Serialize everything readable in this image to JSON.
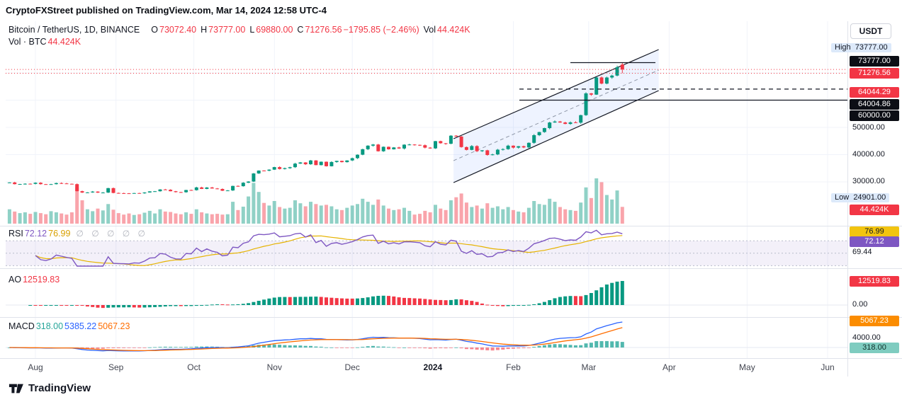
{
  "attribution": "CryptoFXStreet published on TradingView.com, Mar 14, 2024 12:58 UTC-4",
  "currency_button": "USDT",
  "symbol": {
    "title": "Bitcoin / TetherUS, 1D, BINANCE",
    "ohlc": {
      "o_label": "O",
      "o": "73072.40",
      "h_label": "H",
      "h": "73777.00",
      "l_label": "L",
      "l": "69880.00",
      "c_label": "C",
      "c": "71276.56",
      "change": "−1795.85 (−2.46%)",
      "vol_label": "Vol",
      "vol": "44.424K"
    },
    "volume_row": {
      "label": "Vol · BTC",
      "value": "44.424K"
    }
  },
  "price_axis": {
    "high_label": "High",
    "high_value": "73777.00",
    "ath_badge": "73777.00",
    "last_badge": "71276.56",
    "dashed_line_badge": "64044.29",
    "level_badge": "64004.86",
    "support_badge": "60000.00",
    "grid_50000": "50000.00",
    "grid_40000": "40000.00",
    "grid_30000": "30000.00",
    "low_label": "Low",
    "low_value": "24901.00",
    "volume_badge": "44.424K"
  },
  "rsi": {
    "label": "RSI",
    "value": "72.12",
    "ma_value": "76.99",
    "hidden": "∅ ∅ ∅ ∅ ∅",
    "badge_ma": "76.99",
    "badge_rsi": "72.12",
    "scale_label": "69.44"
  },
  "ao": {
    "label": "AO",
    "value": "12519.83",
    "badge": "12519.83",
    "zero_label": "0.00"
  },
  "macd": {
    "label": "MACD",
    "hist_value": "318.00",
    "macd_value": "5385.22",
    "signal_value": "5067.23",
    "badge_signal": "5067.23",
    "scale_label": "4000.00",
    "badge_hist": "318.00"
  },
  "time_axis": [
    "Aug",
    "Sep",
    "Oct",
    "Nov",
    "Dec",
    "2024",
    "Feb",
    "Mar",
    "Apr",
    "May",
    "Jun"
  ],
  "footer": {
    "brand": "TradingView"
  },
  "chart_data": {
    "type": "candlestick",
    "title": "Bitcoin / TetherUS, 1D, BINANCE",
    "interval": "1D",
    "x_start": "2023-07-22",
    "x_step_days": 2,
    "x_axis_months": [
      "Aug",
      "Sep",
      "Oct",
      "Nov",
      "Dec",
      "2024",
      "Feb",
      "Mar",
      "Apr",
      "May",
      "Jun"
    ],
    "y_gridlines": [
      30000,
      40000,
      50000,
      60000,
      70000
    ],
    "ylim": [
      24000,
      79000
    ],
    "close": [
      29790,
      29180,
      29230,
      29320,
      29280,
      29700,
      29170,
      29040,
      29180,
      29560,
      29430,
      29290,
      29170,
      26600,
      26090,
      26120,
      26430,
      26050,
      26090,
      27720,
      25940,
      25870,
      25820,
      25750,
      25900,
      25830,
      26100,
      26530,
      26570,
      27210,
      27120,
      26580,
      26250,
      26220,
      27020,
      26970,
      27980,
      27430,
      27960,
      27590,
      27390,
      26750,
      26860,
      28520,
      28420,
      29680,
      30140,
      33090,
      34160,
      34100,
      34500,
      35440,
      34730,
      35050,
      35400,
      36700,
      37130,
      36460,
      37880,
      36160,
      37390,
      35750,
      37290,
      37710,
      37250,
      37860,
      38690,
      39970,
      41990,
      43290,
      43720,
      41240,
      42890,
      41940,
      42660,
      42260,
      43670,
      43710,
      43580,
      43450,
      42580,
      42280,
      44950,
      44180,
      43990,
      46950,
      46650,
      42780,
      41730,
      43150,
      41280,
      41580,
      39880,
      40080,
      41820,
      42030,
      43300,
      42580,
      43080,
      42660,
      44350,
      47150,
      48290,
      49740,
      51800,
      52160,
      51780,
      51280,
      51840,
      51730,
      54500,
      62500,
      62030,
      68330,
      66090,
      68300,
      69020,
      72080,
      71276.56
    ],
    "volume_k": [
      38,
      32,
      28,
      30,
      26,
      31,
      28,
      25,
      33,
      30,
      27,
      24,
      30,
      96,
      62,
      38,
      33,
      40,
      35,
      52,
      37,
      28,
      24,
      27,
      23,
      25,
      29,
      34,
      27,
      38,
      32,
      31,
      27,
      25,
      30,
      26,
      38,
      30,
      27,
      25,
      26,
      24,
      25,
      58,
      36,
      45,
      72,
      108,
      84,
      55,
      48,
      60,
      44,
      40,
      42,
      62,
      54,
      46,
      58,
      52,
      48,
      50,
      46,
      38,
      36,
      42,
      48,
      52,
      66,
      58,
      50,
      64,
      48,
      40,
      36,
      38,
      42,
      34,
      24,
      26,
      34,
      30,
      50,
      40,
      36,
      62,
      70,
      80,
      56,
      44,
      48,
      40,
      54,
      42,
      46,
      38,
      44,
      36,
      32,
      30,
      42,
      60,
      52,
      50,
      66,
      58,
      44,
      38,
      36,
      34,
      56,
      96,
      68,
      120,
      110,
      76,
      64,
      88,
      44.424
    ],
    "ohlc_last": {
      "open": 73072.4,
      "high": 73777.0,
      "low": 69880.0,
      "close": 71276.56,
      "change": -1795.85,
      "change_pct": -2.46
    },
    "shown_high": 73777.0,
    "shown_low": 24901.0,
    "levels": {
      "ath_resistance": 73777.0,
      "last_price": 71276.56,
      "day_low_line": 69880.0,
      "dashed_level": 64044.29,
      "level2": 64004.86,
      "support": 60000.0
    },
    "channel": {
      "i0": 85.5,
      "i1": 125,
      "upper0": 45844,
      "upper1": 78571,
      "lower0": 29740,
      "lower1": 63506
    },
    "indicators": {
      "rsi": {
        "length": 14,
        "last": 72.12,
        "ma_last": 76.99,
        "bands": [
          70,
          50,
          30
        ]
      },
      "ao": {
        "last": 12519.83
      },
      "macd": {
        "macd_last": 5385.22,
        "signal_last": 5067.23,
        "hist_last": 318.0
      }
    }
  }
}
